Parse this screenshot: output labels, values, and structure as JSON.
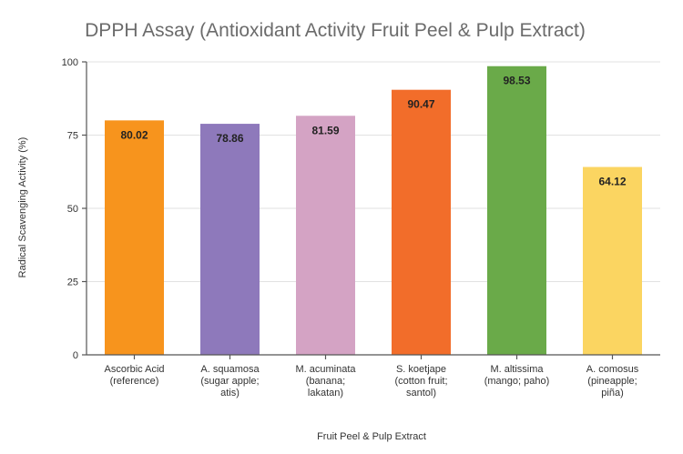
{
  "chart_data": {
    "type": "bar",
    "title": "DPPH Assay (Antioxidant Activity Fruit Peel & Pulp Extract)",
    "xlabel": "Fruit Peel & Pulp Extract",
    "ylabel": "Radical Scavenging Activity (%)",
    "ylim": [
      0,
      100
    ],
    "yticks": [
      0,
      25,
      50,
      75,
      100
    ],
    "grid": true,
    "categories": [
      [
        "Ascorbic Acid",
        "(reference)"
      ],
      [
        "A. squamosa",
        "(sugar apple;",
        "atis)"
      ],
      [
        "M. acuminata",
        "(banana;",
        "lakatan)"
      ],
      [
        "S. koetjape",
        "(cotton fruit;",
        "santol)"
      ],
      [
        "M. altissima",
        "(mango; paho)"
      ],
      [
        "A. comosus",
        "(pineapple;",
        "piña)"
      ]
    ],
    "values": [
      80.02,
      78.86,
      81.59,
      90.47,
      98.53,
      64.12
    ],
    "value_labels": [
      "80.02",
      "78.86",
      "81.59",
      "90.47",
      "98.53",
      "64.12"
    ],
    "colors": [
      "#f7941d",
      "#8e79bb",
      "#d4a3c4",
      "#f26d2a",
      "#6aaa49",
      "#fbd561"
    ]
  }
}
